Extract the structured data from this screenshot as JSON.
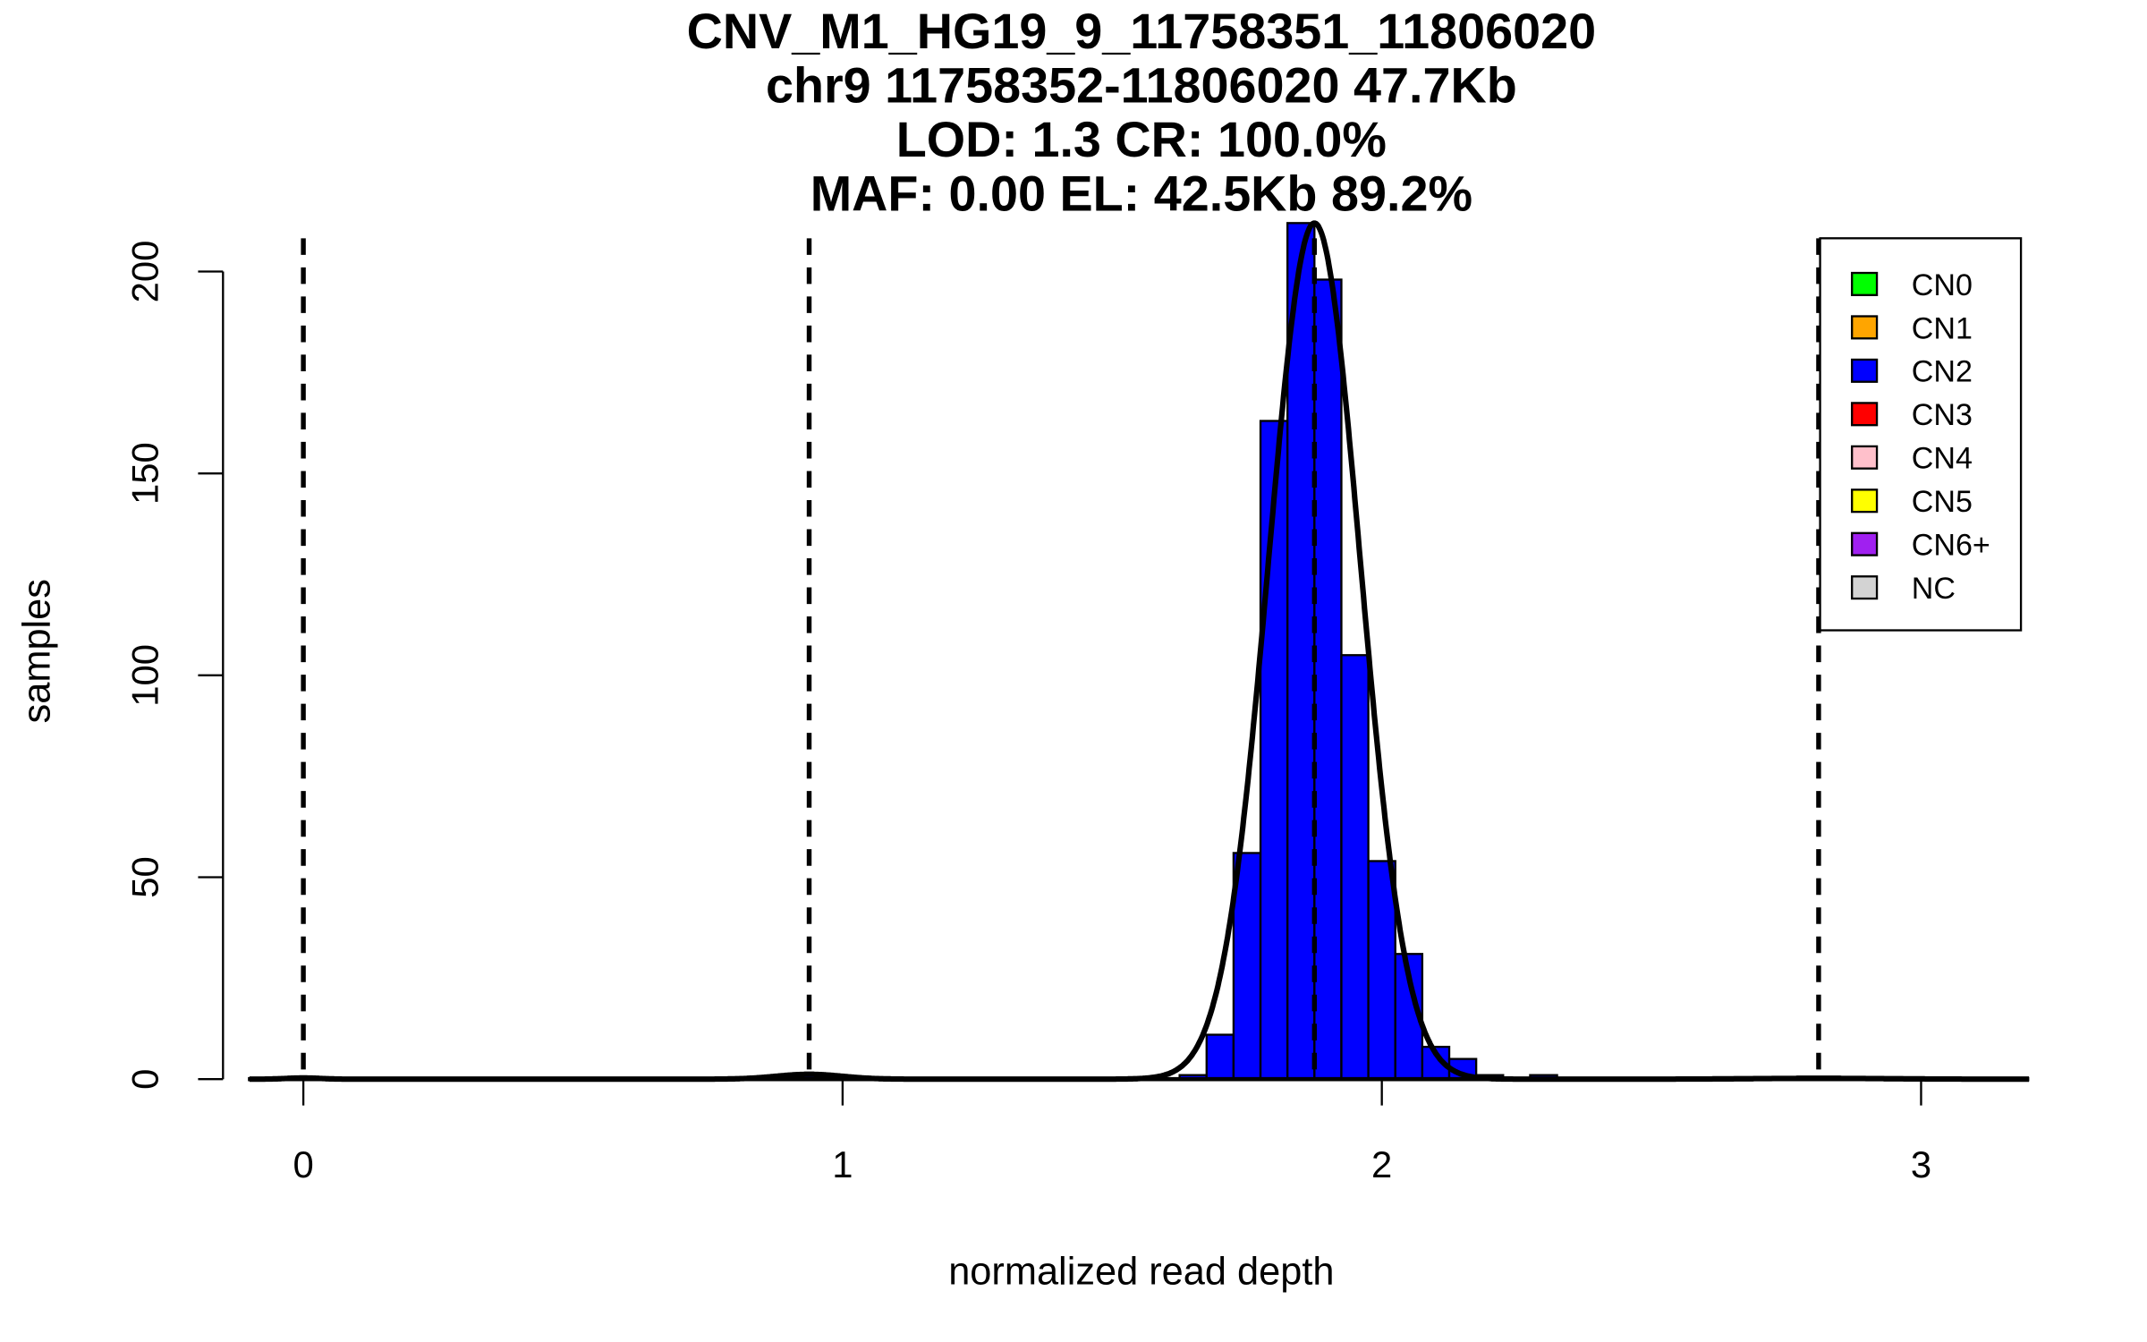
{
  "chart_data": {
    "type": "bar",
    "title_lines": [
      "CNV_M1_HG19_9_11758351_11806020",
      "chr9 11758352-11806020 47.7Kb",
      "LOD: 1.3 CR: 100.0%",
      "MAF: 0.00 EL: 42.5Kb 89.2%"
    ],
    "xlabel": "normalized read depth",
    "ylabel": "samples",
    "xlim": [
      -0.1,
      3.2
    ],
    "ylim": [
      0,
      212
    ],
    "xticks": [
      "0",
      "1",
      "2",
      "3"
    ],
    "yticks": [
      "0",
      "50",
      "100",
      "150",
      "200"
    ],
    "bin_width": 0.05,
    "bins": [
      {
        "start": 0.925,
        "count": 1,
        "color": "#0000ff"
      },
      {
        "start": 1.625,
        "count": 1,
        "color": "#0000ff"
      },
      {
        "start": 1.675,
        "count": 11,
        "color": "#0000ff"
      },
      {
        "start": 1.725,
        "count": 56,
        "color": "#0000ff"
      },
      {
        "start": 1.775,
        "count": 163,
        "color": "#0000ff"
      },
      {
        "start": 1.825,
        "count": 212,
        "color": "#0000ff"
      },
      {
        "start": 1.875,
        "count": 198,
        "color": "#0000ff"
      },
      {
        "start": 1.925,
        "count": 105,
        "color": "#0000ff"
      },
      {
        "start": 1.975,
        "count": 54,
        "color": "#0000ff"
      },
      {
        "start": 2.025,
        "count": 31,
        "color": "#0000ff"
      },
      {
        "start": 2.075,
        "count": 8,
        "color": "#0000ff"
      },
      {
        "start": 2.125,
        "count": 5,
        "color": "#0000ff"
      },
      {
        "start": 2.175,
        "count": 1,
        "color": "#0000ff"
      },
      {
        "start": 2.275,
        "count": 1,
        "color": "#0000ff"
      }
    ],
    "dashed_lines_x": [
      0,
      0.938,
      1.875,
      2.81
    ],
    "fit_curves": [
      {
        "mean": 0,
        "sd": 0.03,
        "peak": 0.3
      },
      {
        "mean": 0.938,
        "sd": 0.06,
        "peak": 1.2
      },
      {
        "mean": 1.875,
        "sd": 0.085,
        "peak": 212
      },
      {
        "mean": 2.81,
        "sd": 0.12,
        "peak": 0.2
      }
    ],
    "legend": {
      "placement": "top-right",
      "entries": [
        {
          "label": "CN0",
          "color": "#00ff00"
        },
        {
          "label": "CN1",
          "color": "#ffa500"
        },
        {
          "label": "CN2",
          "color": "#0000ff"
        },
        {
          "label": "CN3",
          "color": "#ff0000"
        },
        {
          "label": "CN4",
          "color": "#ffc0cb"
        },
        {
          "label": "CN5",
          "color": "#ffff00"
        },
        {
          "label": "CN6+",
          "color": "#a020f0"
        },
        {
          "label": "NC",
          "color": "#d3d3d3"
        }
      ]
    }
  }
}
